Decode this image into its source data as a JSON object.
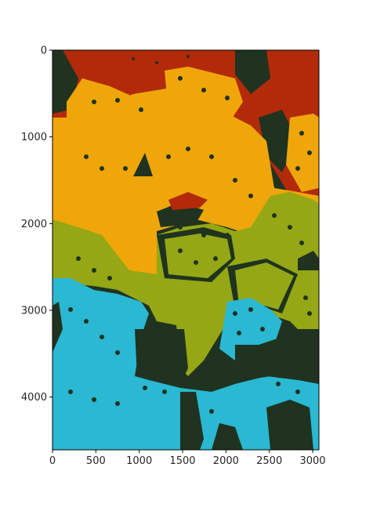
{
  "image": {
    "description_colors": {
      "dark": "#1f3320",
      "red": "#b22a0a",
      "orange": "#efa60a",
      "olive": "#95a714",
      "cyan": "#2ab8d2",
      "frame": "#000000"
    },
    "extent": {
      "width": 3072,
      "height": 4608
    }
  },
  "axes": {
    "x_ticks": [
      {
        "value": 0,
        "label": "0"
      },
      {
        "value": 500,
        "label": "500"
      },
      {
        "value": 1000,
        "label": "1000"
      },
      {
        "value": 1500,
        "label": "1500"
      },
      {
        "value": 2000,
        "label": "2000"
      },
      {
        "value": 2500,
        "label": "2500"
      },
      {
        "value": 3000,
        "label": "3000"
      }
    ],
    "y_ticks": [
      {
        "value": 0,
        "label": "0"
      },
      {
        "value": 1000,
        "label": "1000"
      },
      {
        "value": 2000,
        "label": "2000"
      },
      {
        "value": 3000,
        "label": "3000"
      },
      {
        "value": 4000,
        "label": "4000"
      }
    ]
  }
}
